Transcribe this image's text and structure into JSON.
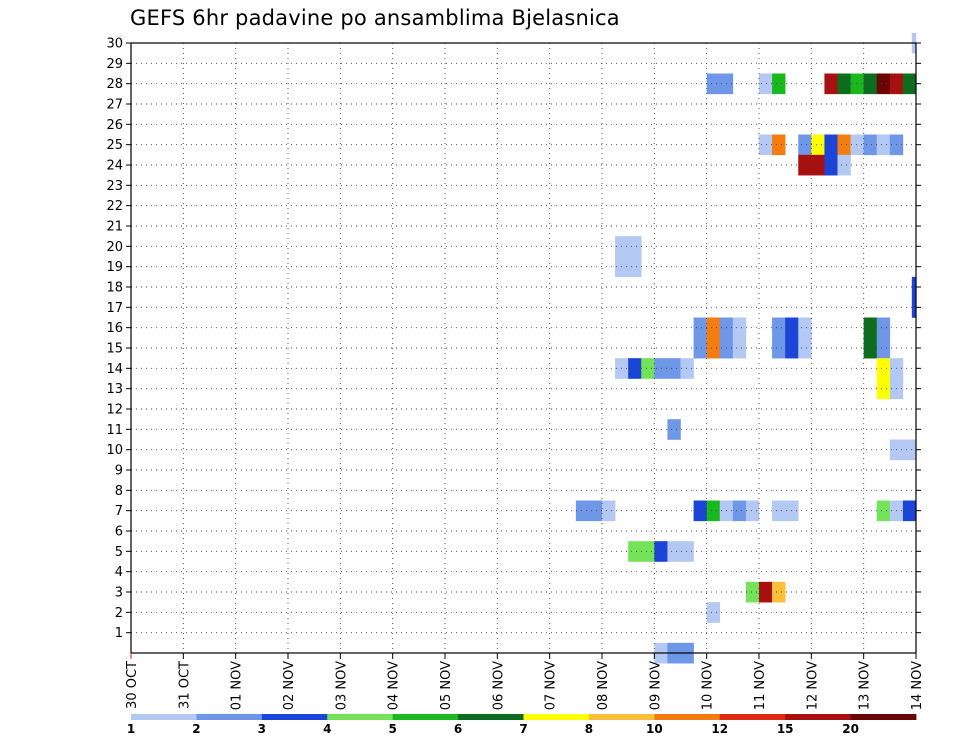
{
  "chart_data": {
    "type": "heatmap",
    "title": "GEFS 6hr padavine po ansamblima Bjelasnica",
    "x_axis": {
      "tick_labels": [
        "30 OCT",
        "31 OCT",
        "01 NOV",
        "02 NOV",
        "03 NOV",
        "04 NOV",
        "05 NOV",
        "06 NOV",
        "07 NOV",
        "08 NOV",
        "09 NOV",
        "10 NOV",
        "11 NOV",
        "12 NOV",
        "13 NOV",
        "14 NOV"
      ],
      "range_days": [
        0,
        15
      ],
      "step": "6hr"
    },
    "y_axis": {
      "tick_labels": [
        "1",
        "2",
        "3",
        "4",
        "5",
        "6",
        "7",
        "8",
        "9",
        "10",
        "11",
        "12",
        "13",
        "14",
        "15",
        "16",
        "17",
        "18",
        "19",
        "20",
        "21",
        "22",
        "23",
        "24",
        "25",
        "26",
        "27",
        "28",
        "29",
        "30"
      ],
      "range": [
        0,
        30
      ]
    },
    "grid": "dotted",
    "colorbar": {
      "position": "bottom",
      "labels": [
        "1",
        "2",
        "3",
        "4",
        "5",
        "6",
        "7",
        "8",
        "10",
        "12",
        "15",
        "20"
      ],
      "colors": [
        "#b3c9f4",
        "#6f97e8",
        "#1b45d8",
        "#74e35a",
        "#19b81d",
        "#0c6d1e",
        "#ffff00",
        "#fbbf3c",
        "#f57d0f",
        "#dd2b10",
        "#a80f0f",
        "#6b0505"
      ]
    },
    "cells": [
      {
        "member": 30,
        "day": 14.92,
        "color": "#b3c9f4"
      },
      {
        "member": 28,
        "day": 11.0,
        "color": "#6f97e8"
      },
      {
        "member": 28,
        "day": 11.25,
        "color": "#6f97e8"
      },
      {
        "member": 28,
        "day": 12.0,
        "color": "#b3c9f4"
      },
      {
        "member": 28,
        "day": 12.25,
        "color": "#19b81d"
      },
      {
        "member": 28,
        "day": 13.25,
        "color": "#a80f0f"
      },
      {
        "member": 28,
        "day": 13.5,
        "color": "#0c6d1e"
      },
      {
        "member": 28,
        "day": 13.75,
        "color": "#19b81d"
      },
      {
        "member": 28,
        "day": 14.0,
        "color": "#0c6d1e"
      },
      {
        "member": 28,
        "day": 14.25,
        "color": "#6b0505"
      },
      {
        "member": 28,
        "day": 14.5,
        "color": "#a80f0f"
      },
      {
        "member": 28,
        "day": 14.75,
        "color": "#0c6d1e"
      },
      {
        "member": 25,
        "day": 12.0,
        "color": "#b3c9f4"
      },
      {
        "member": 25,
        "day": 12.25,
        "color": "#f57d0f"
      },
      {
        "member": 25,
        "day": 12.75,
        "color": "#6f97e8"
      },
      {
        "member": 25,
        "day": 13.0,
        "color": "#ffff00"
      },
      {
        "member": 25,
        "day": 13.25,
        "color": "#1b45d8"
      },
      {
        "member": 25,
        "day": 13.5,
        "color": "#f57d0f"
      },
      {
        "member": 25,
        "day": 13.75,
        "color": "#b3c9f4"
      },
      {
        "member": 25,
        "day": 14.0,
        "color": "#6f97e8"
      },
      {
        "member": 25,
        "day": 14.25,
        "color": "#b3c9f4"
      },
      {
        "member": 25,
        "day": 14.5,
        "color": "#6f97e8"
      },
      {
        "member": 24,
        "day": 12.75,
        "color": "#a80f0f"
      },
      {
        "member": 24,
        "day": 13.0,
        "color": "#a80f0f"
      },
      {
        "member": 24,
        "day": 13.25,
        "color": "#1b45d8"
      },
      {
        "member": 24,
        "day": 13.5,
        "color": "#b3c9f4"
      },
      {
        "member": 20,
        "day": 9.25,
        "color": "#b3c9f4"
      },
      {
        "member": 20,
        "day": 9.5,
        "color": "#b3c9f4"
      },
      {
        "member": 19,
        "day": 9.25,
        "color": "#b3c9f4"
      },
      {
        "member": 19,
        "day": 9.5,
        "color": "#b3c9f4"
      },
      {
        "member": 18,
        "day": 14.92,
        "color": "#1b45d8"
      },
      {
        "member": 17,
        "day": 14.92,
        "color": "#1b45d8"
      },
      {
        "member": 16,
        "day": 10.75,
        "color": "#6f97e8"
      },
      {
        "member": 16,
        "day": 11.0,
        "color": "#f57d0f"
      },
      {
        "member": 16,
        "day": 11.25,
        "color": "#6f97e8"
      },
      {
        "member": 16,
        "day": 11.5,
        "color": "#b3c9f4"
      },
      {
        "member": 16,
        "day": 12.25,
        "color": "#6f97e8"
      },
      {
        "member": 16,
        "day": 12.5,
        "color": "#1b45d8"
      },
      {
        "member": 16,
        "day": 12.75,
        "color": "#b3c9f4"
      },
      {
        "member": 16,
        "day": 14.0,
        "color": "#0c6d1e"
      },
      {
        "member": 16,
        "day": 14.25,
        "color": "#6f97e8"
      },
      {
        "member": 15,
        "day": 10.75,
        "color": "#6f97e8"
      },
      {
        "member": 15,
        "day": 11.0,
        "color": "#f57d0f"
      },
      {
        "member": 15,
        "day": 11.25,
        "color": "#6f97e8"
      },
      {
        "member": 15,
        "day": 11.5,
        "color": "#b3c9f4"
      },
      {
        "member": 15,
        "day": 12.25,
        "color": "#6f97e8"
      },
      {
        "member": 15,
        "day": 12.5,
        "color": "#1b45d8"
      },
      {
        "member": 15,
        "day": 12.75,
        "color": "#b3c9f4"
      },
      {
        "member": 15,
        "day": 14.0,
        "color": "#0c6d1e"
      },
      {
        "member": 15,
        "day": 14.25,
        "color": "#6f97e8"
      },
      {
        "member": 14,
        "day": 9.25,
        "color": "#b3c9f4"
      },
      {
        "member": 14,
        "day": 9.5,
        "color": "#1b45d8"
      },
      {
        "member": 14,
        "day": 9.75,
        "color": "#74e35a"
      },
      {
        "member": 14,
        "day": 10.0,
        "color": "#6f97e8"
      },
      {
        "member": 14,
        "day": 10.25,
        "color": "#6f97e8"
      },
      {
        "member": 14,
        "day": 10.5,
        "color": "#b3c9f4"
      },
      {
        "member": 14,
        "day": 14.25,
        "color": "#ffff00"
      },
      {
        "member": 14,
        "day": 14.5,
        "color": "#b3c9f4"
      },
      {
        "member": 13,
        "day": 14.25,
        "color": "#ffff00"
      },
      {
        "member": 13,
        "day": 14.5,
        "color": "#b3c9f4"
      },
      {
        "member": 11,
        "day": 10.25,
        "color": "#6f97e8"
      },
      {
        "member": 10,
        "day": 14.5,
        "color": "#b3c9f4"
      },
      {
        "member": 10,
        "day": 14.75,
        "color": "#b3c9f4"
      },
      {
        "member": 7,
        "day": 8.5,
        "color": "#6f97e8"
      },
      {
        "member": 7,
        "day": 8.75,
        "color": "#6f97e8"
      },
      {
        "member": 7,
        "day": 9.0,
        "color": "#b3c9f4"
      },
      {
        "member": 7,
        "day": 10.75,
        "color": "#1b45d8"
      },
      {
        "member": 7,
        "day": 11.0,
        "color": "#19b81d"
      },
      {
        "member": 7,
        "day": 11.25,
        "color": "#b3c9f4"
      },
      {
        "member": 7,
        "day": 11.5,
        "color": "#6f97e8"
      },
      {
        "member": 7,
        "day": 11.75,
        "color": "#b3c9f4"
      },
      {
        "member": 7,
        "day": 12.25,
        "color": "#b3c9f4"
      },
      {
        "member": 7,
        "day": 12.5,
        "color": "#b3c9f4"
      },
      {
        "member": 7,
        "day": 14.25,
        "color": "#74e35a"
      },
      {
        "member": 7,
        "day": 14.5,
        "color": "#b3c9f4"
      },
      {
        "member": 7,
        "day": 14.75,
        "color": "#1b45d8"
      },
      {
        "member": 5,
        "day": 9.5,
        "color": "#74e35a"
      },
      {
        "member": 5,
        "day": 9.75,
        "color": "#74e35a"
      },
      {
        "member": 5,
        "day": 10.0,
        "color": "#1b45d8"
      },
      {
        "member": 5,
        "day": 10.25,
        "color": "#b3c9f4"
      },
      {
        "member": 5,
        "day": 10.5,
        "color": "#b3c9f4"
      },
      {
        "member": 3,
        "day": 11.75,
        "color": "#74e35a"
      },
      {
        "member": 3,
        "day": 12.0,
        "color": "#a80f0f"
      },
      {
        "member": 3,
        "day": 12.25,
        "color": "#fbbf3c"
      },
      {
        "member": 2,
        "day": 11.0,
        "color": "#b3c9f4"
      },
      {
        "member": 0,
        "day": 10.0,
        "color": "#b3c9f4"
      },
      {
        "member": 0,
        "day": 10.25,
        "color": "#6f97e8"
      },
      {
        "member": 0,
        "day": 10.5,
        "color": "#6f97e8"
      }
    ]
  }
}
